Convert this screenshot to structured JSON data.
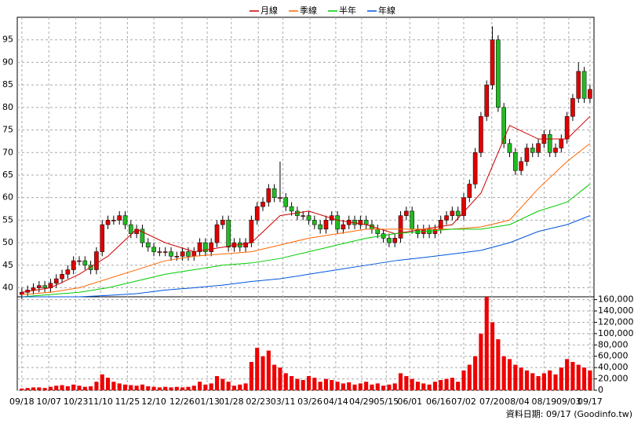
{
  "chart_data": {
    "type": "candlestick",
    "x": [
      0,
      1,
      2,
      3,
      4,
      5,
      6,
      7,
      8,
      9,
      10,
      11,
      12,
      13,
      14,
      15,
      16,
      17,
      18,
      19,
      20,
      21,
      22,
      23,
      24,
      25,
      26,
      27,
      28,
      29,
      30,
      31,
      32,
      33,
      34,
      35,
      36,
      37,
      38,
      39,
      40,
      41,
      42,
      43,
      44,
      45,
      46,
      47,
      48,
      49,
      50,
      51,
      52,
      53,
      54,
      55,
      56,
      57,
      58,
      59,
      60,
      61,
      62,
      63,
      64,
      65,
      66,
      67,
      68,
      69,
      70,
      71,
      72,
      73,
      74,
      75,
      76,
      77,
      78,
      79,
      80,
      81,
      82,
      83,
      84,
      85,
      86,
      87,
      88,
      89,
      90,
      91,
      92,
      93,
      94,
      95,
      96,
      97,
      98,
      99
    ],
    "open": [
      38.5,
      39,
      39.5,
      40,
      40.5,
      40,
      41,
      42,
      43,
      44,
      46,
      46,
      45,
      44,
      48,
      54,
      55,
      55,
      56,
      54,
      52,
      53,
      50,
      49,
      48,
      48,
      48,
      47,
      47,
      48,
      47,
      48,
      50,
      48,
      50,
      54,
      55,
      49,
      50,
      49,
      50,
      55,
      58,
      59,
      62,
      60,
      60,
      58,
      57,
      56,
      56,
      55,
      54,
      53,
      55,
      56,
      53,
      54,
      55,
      54,
      55,
      54,
      53,
      52,
      51,
      50,
      51,
      56,
      57,
      53,
      52,
      53,
      52,
      53,
      55,
      56,
      57,
      56,
      60,
      63,
      70,
      78,
      85,
      95,
      80,
      72,
      70,
      66,
      68,
      71,
      70,
      72,
      74,
      70,
      71,
      73,
      78,
      82,
      88,
      82
    ],
    "high": [
      40,
      40.5,
      41,
      41.5,
      41.5,
      42,
      43,
      44,
      45,
      47,
      47,
      47,
      46,
      49,
      55,
      56,
      56,
      57,
      57,
      55,
      54,
      54,
      51,
      50,
      49,
      49,
      49,
      48,
      49,
      49,
      49,
      51,
      51,
      51,
      55,
      56,
      56,
      51,
      51,
      51,
      56,
      59,
      60,
      63,
      63,
      68,
      61,
      59,
      58,
      57,
      57,
      56,
      55,
      56,
      57,
      57,
      55,
      56,
      56,
      56,
      56,
      55,
      54,
      53,
      52,
      52,
      57,
      58,
      58,
      54,
      54,
      54,
      54,
      56,
      57,
      58,
      58,
      61,
      64,
      71,
      79,
      86,
      98,
      96,
      81,
      73,
      71,
      69,
      72,
      72,
      73,
      75,
      75,
      72,
      74,
      79,
      83,
      90,
      89,
      85
    ],
    "low": [
      37.5,
      38,
      38.5,
      39,
      39,
      39,
      40,
      41,
      42,
      43,
      45,
      44,
      43,
      43,
      47,
      53,
      54,
      54,
      53,
      51,
      51,
      49,
      48,
      47,
      47,
      47,
      46,
      46,
      46,
      46,
      46,
      47,
      47,
      47,
      49,
      53,
      48,
      48,
      48,
      48,
      49,
      54,
      57,
      58,
      59,
      59,
      57,
      56,
      55,
      55,
      54,
      53,
      52,
      52,
      54,
      52,
      52,
      53,
      53,
      53,
      53,
      52,
      51,
      50,
      49,
      49,
      50,
      55,
      52,
      51,
      51,
      51,
      51,
      52,
      54,
      55,
      55,
      55,
      59,
      62,
      69,
      77,
      84,
      79,
      71,
      69,
      65,
      65,
      67,
      69,
      69,
      71,
      69,
      69,
      70,
      72,
      77,
      81,
      81,
      81
    ],
    "close": [
      39,
      39.5,
      40,
      40.5,
      40,
      41,
      42,
      43,
      44,
      46,
      46,
      45,
      44,
      48,
      54,
      55,
      55,
      56,
      54,
      52,
      53,
      50,
      49,
      48,
      48,
      48,
      47,
      47,
      48,
      47,
      48,
      50,
      48,
      50,
      54,
      55,
      49,
      50,
      49,
      50,
      55,
      58,
      59,
      62,
      60,
      60,
      58,
      57,
      56,
      56,
      55,
      54,
      53,
      55,
      56,
      53,
      54,
      55,
      54,
      55,
      54,
      53,
      52,
      51,
      50,
      51,
      56,
      57,
      53,
      52,
      53,
      52,
      53,
      55,
      56,
      57,
      56,
      60,
      63,
      70,
      78,
      85,
      95,
      80,
      72,
      70,
      66,
      68,
      71,
      70,
      72,
      74,
      70,
      71,
      73,
      78,
      82,
      88,
      82,
      84
    ],
    "up_color": "#e00000",
    "down_color": "#22bb22",
    "xlim": [
      -0.8,
      99.7
    ],
    "xticks": [
      {
        "value": 0,
        "label": "09/18"
      },
      {
        "value": 4.7,
        "label": "10/07"
      },
      {
        "value": 9.4,
        "label": "10/23"
      },
      {
        "value": 13.7,
        "label": "11/10"
      },
      {
        "value": 18.4,
        "label": "11/25"
      },
      {
        "value": 23,
        "label": "12/10"
      },
      {
        "value": 27.9,
        "label": "12/26"
      },
      {
        "value": 32.3,
        "label": "01/13"
      },
      {
        "value": 36.5,
        "label": "01/28"
      },
      {
        "value": 41.2,
        "label": "02/23"
      },
      {
        "value": 45.5,
        "label": "03/11"
      },
      {
        "value": 50.2,
        "label": "03/26"
      },
      {
        "value": 54.7,
        "label": "04/14"
      },
      {
        "value": 59.2,
        "label": "04/29"
      },
      {
        "value": 63.5,
        "label": "05/15"
      },
      {
        "value": 67.6,
        "label": "06/01"
      },
      {
        "value": 72.6,
        "label": "06/16"
      },
      {
        "value": 77,
        "label": "07/02"
      },
      {
        "value": 81.9,
        "label": "07/20"
      },
      {
        "value": 86.3,
        "label": "08/04"
      },
      {
        "value": 91,
        "label": "08/19"
      },
      {
        "value": 95.3,
        "label": "09/03"
      },
      {
        "value": 99,
        "label": "09/17"
      }
    ],
    "ylim": [
      38,
      100
    ],
    "yticks": [
      40,
      45,
      50,
      55,
      60,
      65,
      70,
      75,
      80,
      85,
      90,
      95
    ],
    "grid": true,
    "series": [
      {
        "name": "月線",
        "color": "#cc0000",
        "x": [
          0,
          5,
          10,
          15,
          20,
          25,
          30,
          35,
          40,
          45,
          50,
          55,
          60,
          65,
          70,
          75,
          80,
          85,
          90,
          95,
          99
        ],
        "values": [
          39,
          40,
          43,
          47,
          53,
          50,
          48,
          49,
          50,
          56,
          57,
          55,
          54,
          52,
          53,
          54,
          61,
          76,
          73,
          73,
          78
        ]
      },
      {
        "name": "季線",
        "color": "#ff6600",
        "x": [
          0,
          5,
          10,
          15,
          20,
          25,
          30,
          35,
          40,
          45,
          50,
          55,
          60,
          65,
          70,
          75,
          80,
          85,
          90,
          95,
          99
        ],
        "values": [
          38.5,
          39,
          40,
          42,
          44,
          46,
          47,
          47.5,
          48,
          49.5,
          51,
          52,
          53,
          53,
          53,
          53,
          53.5,
          55,
          62,
          68,
          72
        ]
      },
      {
        "name": "半年",
        "color": "#00cc00",
        "x": [
          0,
          5,
          10,
          15,
          20,
          25,
          30,
          35,
          40,
          45,
          50,
          55,
          60,
          65,
          70,
          75,
          80,
          85,
          90,
          95,
          99
        ],
        "values": [
          38,
          38.5,
          39,
          40,
          41.5,
          43,
          44,
          45,
          45.5,
          46.5,
          48,
          49.5,
          51,
          52,
          52.5,
          53,
          53,
          54,
          57,
          59,
          63
        ]
      },
      {
        "name": "年線",
        "color": "#0055dd",
        "x": [
          0,
          5,
          10,
          15,
          20,
          25,
          30,
          35,
          40,
          45,
          50,
          55,
          60,
          65,
          70,
          75,
          80,
          85,
          90,
          95,
          99
        ],
        "values": [
          38,
          38,
          38,
          38.3,
          38.7,
          39.5,
          40,
          40.6,
          41.4,
          42,
          43,
          44,
          45,
          46,
          46.7,
          47.5,
          48.3,
          50,
          52.5,
          54,
          56
        ]
      }
    ],
    "volume": {
      "color": "#ee0000",
      "ylim": [
        0,
        165000
      ],
      "yticks": [
        0,
        {
          "value": 20000,
          "label": "20,000"
        },
        {
          "value": 40000,
          "label": "40,000"
        },
        {
          "value": 60000,
          "label": "60,000"
        },
        {
          "value": 80000,
          "label": "80,000"
        },
        {
          "value": 100000,
          "label": "100,000"
        },
        {
          "value": 120000,
          "label": "120,000"
        },
        {
          "value": 140000,
          "label": "140,000"
        },
        {
          "value": 160000,
          "label": "160,000"
        }
      ],
      "values": [
        3000,
        4000,
        5000,
        5000,
        4000,
        6000,
        8000,
        9000,
        7000,
        10000,
        8000,
        6000,
        7000,
        15000,
        28000,
        22000,
        15000,
        12000,
        10000,
        9000,
        8000,
        10000,
        7000,
        6000,
        5000,
        6000,
        5000,
        6000,
        5000,
        6000,
        8000,
        15000,
        10000,
        12000,
        25000,
        20000,
        15000,
        8000,
        10000,
        12000,
        50000,
        75000,
        60000,
        70000,
        45000,
        40000,
        30000,
        25000,
        20000,
        18000,
        25000,
        22000,
        15000,
        20000,
        18000,
        15000,
        12000,
        14000,
        10000,
        12000,
        15000,
        10000,
        12000,
        8000,
        10000,
        12000,
        30000,
        25000,
        20000,
        15000,
        12000,
        10000,
        15000,
        18000,
        20000,
        22000,
        15000,
        35000,
        45000,
        60000,
        100000,
        165000,
        120000,
        90000,
        60000,
        55000,
        45000,
        40000,
        35000,
        30000,
        25000,
        30000,
        35000,
        28000,
        40000,
        55000,
        50000,
        45000,
        40000,
        35000
      ]
    },
    "footnote": "資料日期: 09/17 (Goodinfo.tw)"
  }
}
